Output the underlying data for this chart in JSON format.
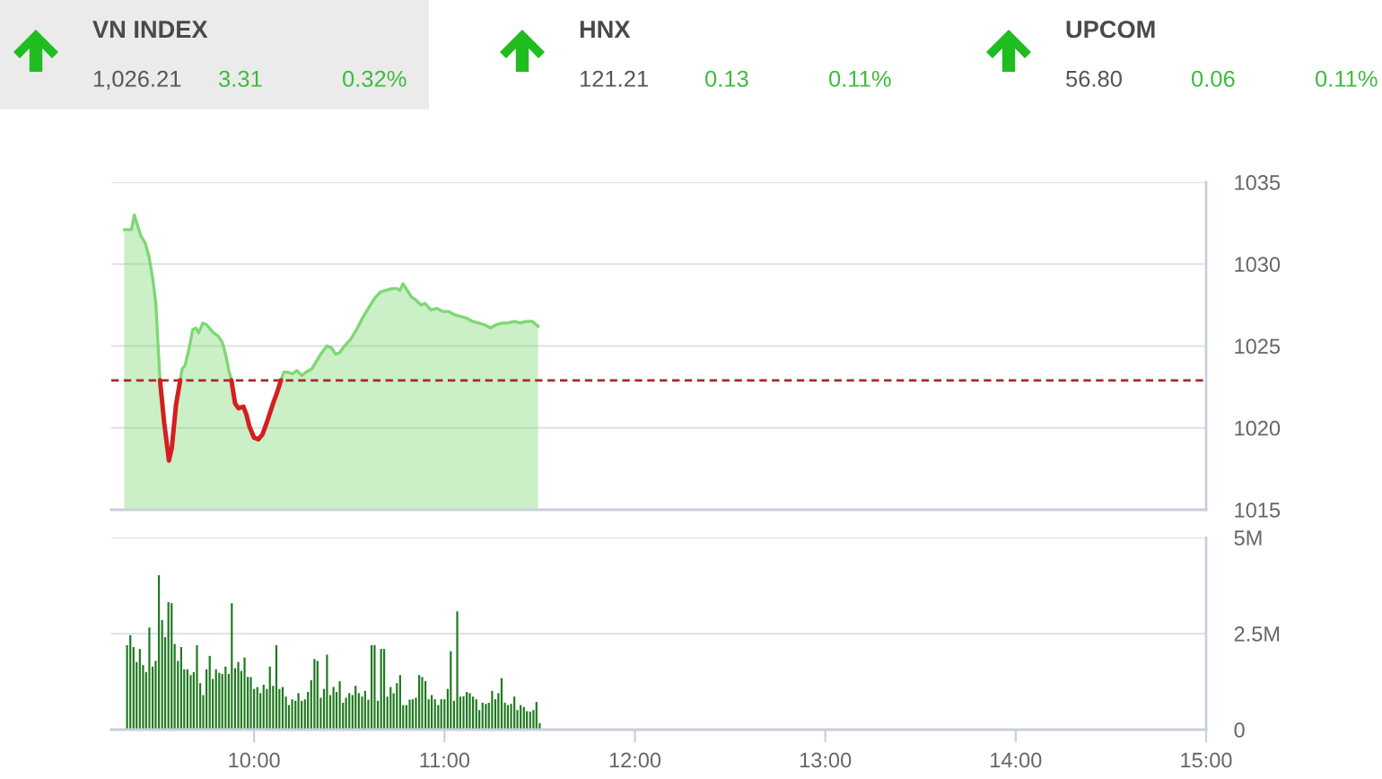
{
  "chart_data": [
    {
      "type": "other",
      "annotations": [
        "VN INDEX",
        "1,026.21",
        "3.31",
        "0.32%",
        "HNX",
        "121.21",
        "0.13",
        "0.11%",
        "UPCOM",
        "56.80",
        "0.06",
        "0.11%"
      ]
    },
    {
      "type": "line",
      "x": [
        9.318,
        9.356,
        9.371,
        9.387,
        9.406,
        9.428,
        9.449,
        9.468,
        9.484,
        9.496,
        9.506,
        9.528,
        9.553,
        9.568,
        9.59,
        9.612,
        9.622,
        9.637,
        9.656,
        9.678,
        9.694,
        9.709,
        9.731,
        9.75,
        9.765,
        9.787,
        9.812,
        9.834,
        9.85,
        9.866,
        9.881,
        9.9,
        9.918,
        9.944,
        9.96,
        9.975,
        10.0,
        10.022,
        10.044,
        10.069,
        10.1,
        10.119,
        10.141,
        10.156,
        10.178,
        10.2,
        10.225,
        10.25,
        10.272,
        10.303,
        10.35,
        10.382,
        10.406,
        10.428,
        10.45,
        10.475,
        10.507,
        10.538,
        10.569,
        10.6,
        10.632,
        10.663,
        10.694,
        10.725,
        10.75,
        10.766,
        10.782,
        10.804,
        10.826,
        10.851,
        10.876,
        10.898,
        10.929,
        10.96,
        10.992,
        11.023,
        11.054,
        11.085,
        11.116,
        11.147,
        11.179,
        11.21,
        11.241,
        11.272,
        11.304,
        11.335,
        11.367,
        11.398,
        11.429,
        11.461,
        11.482,
        11.492
      ],
      "series": [
        {
          "type": "area",
          "color": "#7dd873",
          "values": [
            1032.1,
            1032.1,
            1033.0,
            1032.4,
            1031.7,
            1031.3,
            1030.4,
            1029.1,
            1027.6,
            1025.0,
            1022.9,
            1020.3,
            1018.0,
            1018.8,
            1021.4,
            1022.9,
            1023.6,
            1023.8,
            1024.7,
            1026.0,
            1026.1,
            1025.8,
            1026.4,
            1026.3,
            1026.1,
            1025.8,
            1025.6,
            1025.2,
            1024.5,
            1023.6,
            1022.9,
            1021.5,
            1021.2,
            1021.3,
            1020.8,
            1020.1,
            1019.4,
            1019.3,
            1019.6,
            1020.4,
            1021.5,
            1022.1,
            1022.9,
            1023.4,
            1023.4,
            1023.3,
            1023.5,
            1023.2,
            1023.4,
            1023.6,
            1024.5,
            1025.0,
            1024.9,
            1024.5,
            1024.6,
            1025.0,
            1025.4,
            1026.0,
            1026.7,
            1027.3,
            1027.9,
            1028.3,
            1028.4,
            1028.5,
            1028.5,
            1028.4,
            1028.8,
            1028.4,
            1028.0,
            1027.8,
            1027.5,
            1027.6,
            1027.2,
            1027.3,
            1027.1,
            1027.1,
            1026.9,
            1026.8,
            1026.7,
            1026.5,
            1026.4,
            1026.3,
            1026.1,
            1026.3,
            1026.4,
            1026.4,
            1026.5,
            1026.4,
            1026.5,
            1026.5,
            1026.3,
            1026.2
          ]
        },
        {
          "type": "line",
          "color": "#d41f1f",
          "values": [
            null,
            null,
            null,
            null,
            null,
            null,
            null,
            null,
            null,
            null,
            1022.9,
            1020.3,
            1018.0,
            1018.8,
            1021.4,
            1022.9,
            null,
            null,
            null,
            null,
            null,
            null,
            null,
            null,
            null,
            null,
            null,
            null,
            null,
            null,
            1022.9,
            1021.5,
            1021.2,
            1021.3,
            1020.8,
            1020.1,
            1019.4,
            1019.3,
            1019.6,
            1020.4,
            1021.5,
            1022.1,
            1022.9,
            null,
            null,
            null,
            null,
            null,
            null,
            null,
            null,
            null,
            null,
            null,
            null,
            null,
            null,
            null,
            null,
            null,
            null,
            null,
            null,
            null,
            null,
            null,
            null,
            null,
            null,
            null,
            null,
            null,
            null,
            null,
            null,
            null,
            null,
            null,
            null,
            null,
            null,
            null,
            null,
            null,
            null,
            null,
            null,
            null,
            null,
            null,
            null,
            null
          ]
        }
      ],
      "xlim": [
        9.25,
        15
      ],
      "ylim": [
        1015,
        1035
      ],
      "yticks": [
        1015,
        1020,
        1025,
        1030,
        1035
      ],
      "tick_labels": "y",
      "grid": "y",
      "ref_lines": [
        {
          "axis": "y",
          "value": 1022.9,
          "color": "#a52a2a",
          "line_style": "dashed"
        }
      ]
    },
    {
      "type": "bar",
      "x": [
        9.333,
        9.35,
        9.367,
        9.383,
        9.4,
        9.417,
        9.433,
        9.45,
        9.467,
        9.483,
        9.5,
        9.517,
        9.533,
        9.55,
        9.567,
        9.583,
        9.6,
        9.617,
        9.633,
        9.65,
        9.667,
        9.683,
        9.7,
        9.717,
        9.733,
        9.75,
        9.767,
        9.783,
        9.8,
        9.817,
        9.833,
        9.85,
        9.867,
        9.883,
        9.9,
        9.917,
        9.933,
        9.95,
        9.967,
        9.983,
        10,
        10.017,
        10.033,
        10.05,
        10.067,
        10.083,
        10.1,
        10.117,
        10.133,
        10.15,
        10.167,
        10.183,
        10.2,
        10.217,
        10.233,
        10.25,
        10.267,
        10.283,
        10.3,
        10.317,
        10.333,
        10.35,
        10.367,
        10.383,
        10.4,
        10.417,
        10.433,
        10.45,
        10.467,
        10.483,
        10.5,
        10.517,
        10.533,
        10.55,
        10.567,
        10.583,
        10.6,
        10.617,
        10.633,
        10.65,
        10.667,
        10.683,
        10.7,
        10.717,
        10.733,
        10.75,
        10.767,
        10.783,
        10.8,
        10.817,
        10.833,
        10.85,
        10.867,
        10.883,
        10.9,
        10.917,
        10.933,
        10.95,
        10.967,
        10.983,
        11,
        11.017,
        11.033,
        11.05,
        11.067,
        11.083,
        11.1,
        11.117,
        11.133,
        11.15,
        11.167,
        11.183,
        11.2,
        11.217,
        11.233,
        11.25,
        11.267,
        11.283,
        11.3,
        11.317,
        11.333,
        11.35,
        11.367,
        11.383,
        11.4,
        11.417,
        11.433,
        11.45,
        11.467,
        11.483,
        11.5
      ],
      "values": [
        2.2,
        2.46,
        2.15,
        1.76,
        2.1,
        1.68,
        1.5,
        2.66,
        1.64,
        1.79,
        4.02,
        2.85,
        2.41,
        3.32,
        3.29,
        2.23,
        1.79,
        2.15,
        1.57,
        1.57,
        1.42,
        1.5,
        2.2,
        1.21,
        0.9,
        1.57,
        1.92,
        1.32,
        1.57,
        1.48,
        1.45,
        1.64,
        1.45,
        3.29,
        1.6,
        1.76,
        1.53,
        1.88,
        1.37,
        1.37,
        1.06,
        1.11,
        0.95,
        1.17,
        1.06,
        1.64,
        1.14,
        2.2,
        1.06,
        1.11,
        0.86,
        0.64,
        0.79,
        0.75,
        0.95,
        0.75,
        0.79,
        0.98,
        1.29,
        1.84,
        1.79,
        0.83,
        1.06,
        1.95,
        0.9,
        1.11,
        0.98,
        1.26,
        0.7,
        0.83,
        0.95,
        0.9,
        1.14,
        0.95,
        0.86,
        1.01,
        0.78,
        2.2,
        2.2,
        0.75,
        2.1,
        2.1,
        0.86,
        1.11,
        0.95,
        1.21,
        1.42,
        0.64,
        0.64,
        0.78,
        0.79,
        0.83,
        1.42,
        1.37,
        1.26,
        0.79,
        0.9,
        0.79,
        0.64,
        0.79,
        0.79,
        1.06,
        2.04,
        0.75,
        3.08,
        0.86,
        0.87,
        0.98,
        0.95,
        0.86,
        0.79,
        0.51,
        0.7,
        0.67,
        0.7,
        1.01,
        0.79,
        0.95,
        1.34,
        0.7,
        0.64,
        0.67,
        0.86,
        0.51,
        0.64,
        0.59,
        0.48,
        0.47,
        0.51,
        0.72,
        0.17
      ],
      "color": "#1f7a1f",
      "xlim": [
        9.25,
        15
      ],
      "xticks": [
        {
          "value": 10,
          "label": "10:00"
        },
        {
          "value": 11,
          "label": "11:00"
        },
        {
          "value": 12,
          "label": "12:00"
        },
        {
          "value": 13,
          "label": "13:00"
        },
        {
          "value": 14,
          "label": "14:00"
        },
        {
          "value": 15,
          "label": "15:00"
        }
      ],
      "ylim": [
        0,
        5
      ],
      "yticks": [
        0,
        {
          "value": 2.5,
          "label": "2.5M"
        },
        {
          "value": 5,
          "label": "5M"
        }
      ],
      "grid": "y"
    }
  ]
}
